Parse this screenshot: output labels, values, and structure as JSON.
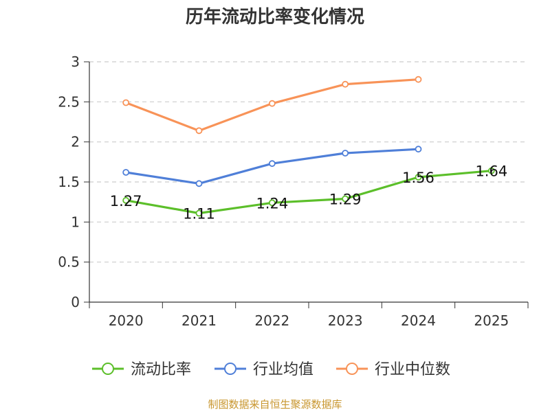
{
  "chart_data": {
    "type": "line",
    "title": "历年流动比率变化情况",
    "categories": [
      "2020",
      "2021",
      "2022",
      "2023",
      "2024",
      "2025"
    ],
    "ylim": [
      0,
      3
    ],
    "yticks": [
      0,
      0.5,
      1,
      1.5,
      2,
      2.5,
      3
    ],
    "ytick_labels": [
      "0",
      "0.5",
      "1",
      "1.5",
      "2",
      "2.5",
      "3"
    ],
    "grid": true,
    "legend_position": "bottom",
    "series": [
      {
        "name": "流动比率",
        "color": "#5cbf2a",
        "values": [
          1.27,
          1.11,
          1.24,
          1.29,
          1.56,
          1.64
        ],
        "labels": [
          "1.27",
          "1.11",
          "1.24",
          "1.29",
          "1.56",
          "1.64"
        ]
      },
      {
        "name": "行业均值",
        "color": "#4f7fd8",
        "values": [
          1.62,
          1.48,
          1.73,
          1.86,
          1.91,
          null
        ]
      },
      {
        "name": "行业中位数",
        "color": "#f89358",
        "values": [
          2.49,
          2.14,
          2.48,
          2.72,
          2.78,
          null
        ]
      }
    ]
  },
  "source": "制图数据来自恒生聚源数据库"
}
